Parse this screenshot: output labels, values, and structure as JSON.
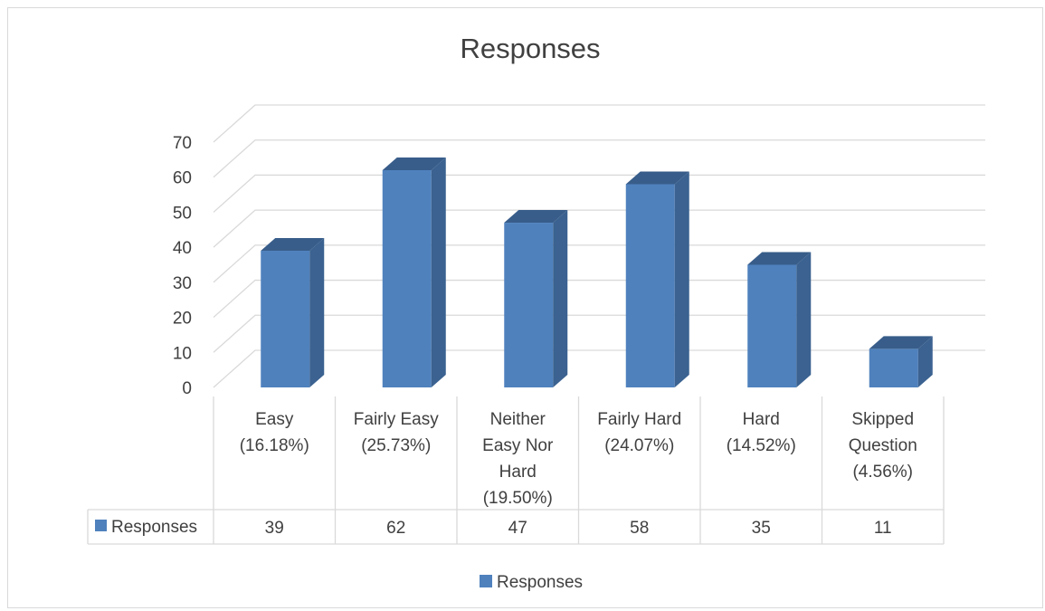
{
  "chart_data": {
    "type": "bar",
    "title": "Responses",
    "categories": [
      [
        "Easy",
        "(16.18%)"
      ],
      [
        "Fairly Easy",
        "(25.73%)"
      ],
      [
        "Neither",
        "Easy Nor",
        "Hard",
        "(19.50%)"
      ],
      [
        "Fairly Hard",
        "(24.07%)"
      ],
      [
        "Hard",
        "(14.52%)"
      ],
      [
        "Skipped",
        "Question",
        "(4.56%)"
      ]
    ],
    "series": [
      {
        "name": "Responses",
        "values": [
          39,
          62,
          47,
          58,
          35,
          11
        ],
        "color": "#4f81bd",
        "side_color": "#3b6290",
        "top_color": "#385d8a"
      }
    ],
    "xlabel": "",
    "ylabel": "",
    "ylim": [
      0,
      70
    ],
    "yticks": [
      0,
      10,
      20,
      30,
      40,
      50,
      60,
      70
    ],
    "grid": true,
    "legend": "bottom",
    "data_table": true,
    "three_d": true
  }
}
